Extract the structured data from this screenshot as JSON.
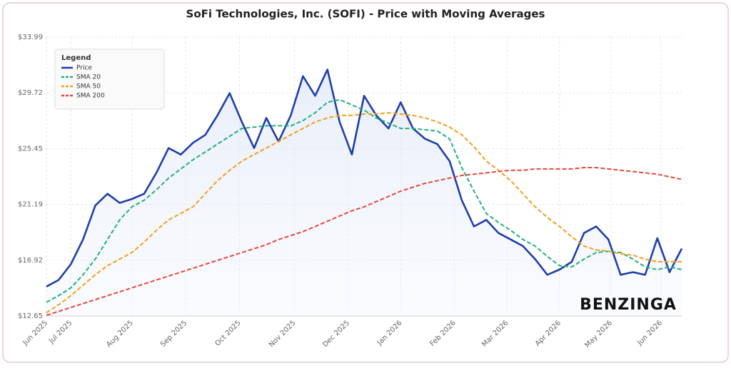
{
  "chart_data": {
    "type": "line",
    "title": "SoFi Technologies, Inc. (SOFI) - Price with Moving Averages",
    "legend_title": "Legend",
    "watermark": "BENZINGA",
    "x": [
      0,
      1,
      2,
      3,
      4,
      5,
      6,
      7,
      8,
      9,
      10,
      11,
      12,
      13,
      14,
      15,
      16,
      17,
      18,
      19,
      20,
      21,
      22,
      23,
      24,
      25,
      26,
      27,
      28,
      29,
      30,
      31,
      32,
      33,
      34,
      35,
      36,
      37,
      38,
      39,
      40,
      41,
      42,
      43,
      44,
      45,
      46,
      47,
      48,
      49,
      50,
      51,
      52
    ],
    "xlim": [
      0,
      52
    ],
    "xticks": [
      {
        "value": 0,
        "label": "Jun 2025"
      },
      {
        "value": 2,
        "label": "Jul 2025"
      },
      {
        "value": 7,
        "label": "Aug 2025"
      },
      {
        "value": 11.4,
        "label": "Sep 2025"
      },
      {
        "value": 15.8,
        "label": "Oct 2025"
      },
      {
        "value": 20.3,
        "label": "Nov 2025"
      },
      {
        "value": 24.7,
        "label": "Dec 2025"
      },
      {
        "value": 29,
        "label": "Jan 2026"
      },
      {
        "value": 33.4,
        "label": "Feb 2026"
      },
      {
        "value": 37.7,
        "label": "Mar 2026"
      },
      {
        "value": 42,
        "label": "Apr 2026"
      },
      {
        "value": 46.2,
        "label": "May 2026"
      },
      {
        "value": 50.3,
        "label": "Jun 2026"
      }
    ],
    "ylim": [
      12.65,
      33.99
    ],
    "yticks": [
      {
        "value": 12.65,
        "label": "$12.65"
      },
      {
        "value": 16.92,
        "label": "$16.92"
      },
      {
        "value": 21.19,
        "label": "$21.19"
      },
      {
        "value": 25.45,
        "label": "$25.45"
      },
      {
        "value": 29.72,
        "label": "$29.72"
      },
      {
        "value": 33.99,
        "label": "$33.99"
      }
    ],
    "grid": true,
    "legend": "top-left",
    "series": [
      {
        "name": "Price",
        "color": "#1f3fa8",
        "dash": false,
        "values": [
          14.9,
          15.4,
          16.6,
          18.5,
          21.1,
          22.0,
          21.3,
          21.6,
          22.0,
          23.6,
          25.5,
          25.0,
          25.9,
          26.5,
          28.0,
          29.7,
          27.5,
          25.5,
          27.8,
          26.0,
          28.0,
          31.0,
          29.5,
          31.5,
          27.5,
          25.0,
          29.5,
          28.0,
          27.0,
          29.0,
          27.0,
          26.2,
          25.8,
          24.5,
          21.5,
          19.5,
          20.0,
          19.0,
          18.5,
          18.0,
          17.0,
          15.8,
          16.2,
          16.8,
          19.0,
          19.5,
          18.5,
          15.8,
          16.0,
          15.8,
          18.6,
          16.0,
          17.8
        ]
      },
      {
        "name": "SMA 20",
        "color": "#22b07d",
        "dash": true,
        "values": [
          13.7,
          14.2,
          14.8,
          15.8,
          17.0,
          18.5,
          20.0,
          21.0,
          21.5,
          22.3,
          23.2,
          23.9,
          24.6,
          25.2,
          25.8,
          26.4,
          27.0,
          27.1,
          27.2,
          27.2,
          27.2,
          27.6,
          28.2,
          29.0,
          29.2,
          28.8,
          28.4,
          27.8,
          27.4,
          27.0,
          27.0,
          26.9,
          26.8,
          26.2,
          24.0,
          22.2,
          20.5,
          19.8,
          19.2,
          18.5,
          18.0,
          17.2,
          16.5,
          16.4,
          17.0,
          17.5,
          17.6,
          17.5,
          17.0,
          16.4,
          16.2,
          16.4,
          16.2
        ]
      },
      {
        "name": "SMA 50",
        "color": "#f0a01e",
        "dash": true,
        "values": [
          12.9,
          13.5,
          14.2,
          15.0,
          15.8,
          16.5,
          17.0,
          17.5,
          18.3,
          19.2,
          20.0,
          20.5,
          21.0,
          22.0,
          23.0,
          23.8,
          24.5,
          25.0,
          25.5,
          26.0,
          26.5,
          27.0,
          27.5,
          27.8,
          28.0,
          28.0,
          28.1,
          28.1,
          28.2,
          28.1,
          28.0,
          27.8,
          27.5,
          27.1,
          26.5,
          25.6,
          24.5,
          23.8,
          23.0,
          22.0,
          21.0,
          20.2,
          19.5,
          18.7,
          18.0,
          17.7,
          17.6,
          17.4,
          17.3,
          17.0,
          16.8,
          16.8,
          16.8
        ]
      },
      {
        "name": "SMA 200",
        "color": "#e8453c",
        "dash": true,
        "values": [
          12.7,
          13.0,
          13.3,
          13.6,
          13.9,
          14.2,
          14.5,
          14.8,
          15.1,
          15.4,
          15.7,
          16.0,
          16.3,
          16.6,
          16.9,
          17.2,
          17.5,
          17.8,
          18.1,
          18.5,
          18.8,
          19.1,
          19.5,
          19.9,
          20.3,
          20.7,
          21.0,
          21.4,
          21.8,
          22.2,
          22.5,
          22.8,
          23.0,
          23.2,
          23.4,
          23.5,
          23.6,
          23.7,
          23.8,
          23.8,
          23.9,
          23.9,
          23.9,
          23.9,
          24.0,
          24.0,
          23.9,
          23.8,
          23.7,
          23.6,
          23.5,
          23.3,
          23.1
        ]
      }
    ]
  }
}
